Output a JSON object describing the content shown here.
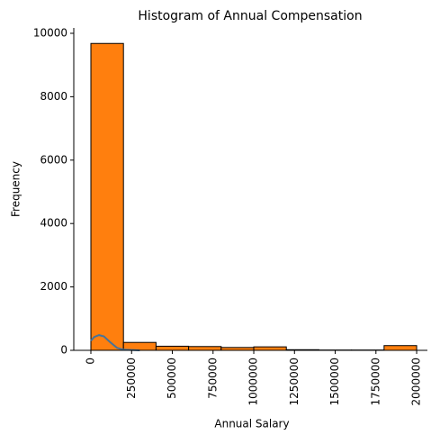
{
  "chart_data": {
    "type": "histogram",
    "title": "Histogram of Annual Compensation",
    "x_label": "Annual Salary",
    "y_label": "Frequency",
    "bins": [
      0,
      200000,
      400000,
      600000,
      800000,
      1000000,
      1200000,
      1400000,
      1600000,
      1800000,
      2000000
    ],
    "values": [
      9680,
      250,
      130,
      120,
      90,
      110,
      20,
      10,
      10,
      150
    ],
    "color": "#ff7f0e",
    "kde": {
      "color": "#4a7396",
      "x": [
        0,
        20000,
        50000,
        80000,
        120000,
        160000,
        200000,
        300000
      ],
      "y": [
        300,
        420,
        480,
        440,
        250,
        80,
        20,
        0
      ]
    },
    "xlim": [
      -105000,
      2066000
    ],
    "ylim": [
      0,
      10170
    ],
    "xticks": [
      0,
      250000,
      500000,
      750000,
      1000000,
      1250000,
      1500000,
      1750000,
      2000000
    ],
    "yticks": [
      0,
      2000,
      4000,
      6000,
      8000,
      10000
    ]
  }
}
